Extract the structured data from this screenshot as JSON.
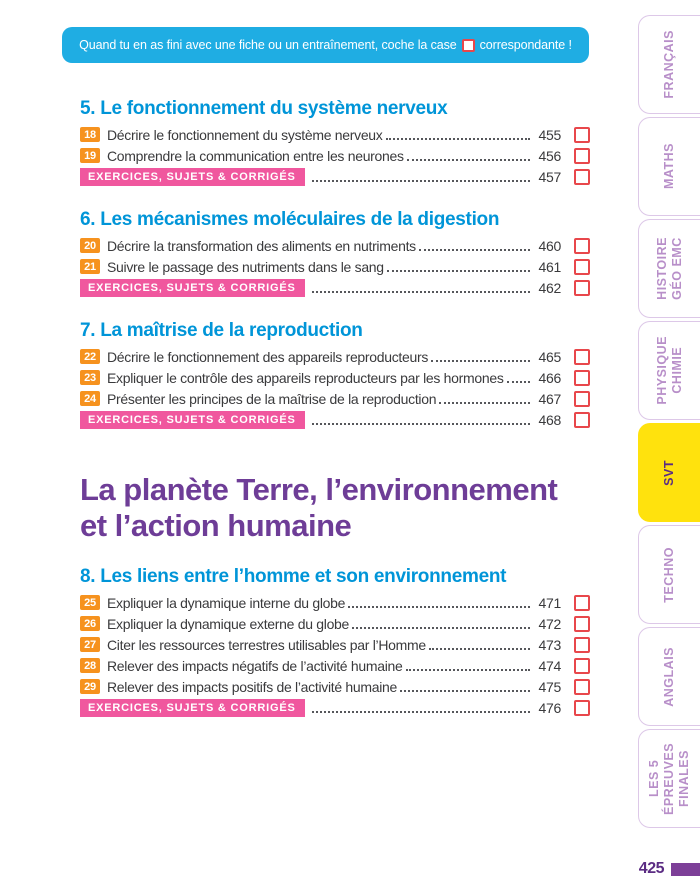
{
  "banner": {
    "text_before": "Quand tu en as fini avec une fiche ou un entraînement, coche la case",
    "text_after": "correspondante !"
  },
  "part_title": "La planète Terre, l’environnement\net l’action humaine",
  "sections": [
    {
      "title": "5. Le fonctionnement du système nerveux",
      "items": [
        {
          "type": "lesson",
          "num": "18",
          "label": "Décrire le fonctionnement du système nerveux",
          "page": "455"
        },
        {
          "type": "lesson",
          "num": "19",
          "label": "Comprendre la communication entre les neurones",
          "page": "456"
        },
        {
          "type": "exercises",
          "label": "EXERCICES, SUJETS & CORRIGÉS",
          "page": "457"
        }
      ]
    },
    {
      "title": "6. Les mécanismes moléculaires de la digestion",
      "items": [
        {
          "type": "lesson",
          "num": "20",
          "label": "Décrire la transformation des aliments en nutriments",
          "page": "460"
        },
        {
          "type": "lesson",
          "num": "21",
          "label": "Suivre le passage des nutriments dans le sang",
          "page": "461"
        },
        {
          "type": "exercises",
          "label": "EXERCICES, SUJETS & CORRIGÉS",
          "page": "462"
        }
      ]
    },
    {
      "title": "7. La maîtrise de la reproduction",
      "items": [
        {
          "type": "lesson",
          "num": "22",
          "label": "Décrire le fonctionnement des appareils reproducteurs",
          "page": "465"
        },
        {
          "type": "lesson",
          "num": "23",
          "label": "Expliquer le contrôle des appareils reproducteurs par les hormones",
          "page": "466"
        },
        {
          "type": "lesson",
          "num": "24",
          "label": "Présenter les principes de la maîtrise de la reproduction",
          "page": "467"
        },
        {
          "type": "exercises",
          "label": "EXERCICES, SUJETS & CORRIGÉS",
          "page": "468"
        }
      ]
    },
    {
      "title": "8. Les liens entre l’homme et son environnement",
      "part_break_before": true,
      "items": [
        {
          "type": "lesson",
          "num": "25",
          "label": "Expliquer la dynamique interne du globe",
          "page": "471"
        },
        {
          "type": "lesson",
          "num": "26",
          "label": "Expliquer la dynamique externe du globe",
          "page": "472"
        },
        {
          "type": "lesson",
          "num": "27",
          "label": "Citer les ressources terrestres utilisables par l’Homme",
          "page": "473"
        },
        {
          "type": "lesson",
          "num": "28",
          "label": "Relever des impacts négatifs de l’activité humaine",
          "page": "474"
        },
        {
          "type": "lesson",
          "num": "29",
          "label": "Relever des impacts positifs de l’activité humaine",
          "page": "475"
        },
        {
          "type": "exercises",
          "label": "EXERCICES, SUJETS & CORRIGÉS",
          "page": "476"
        }
      ]
    }
  ],
  "sidebar": {
    "tabs": [
      {
        "id": "francais",
        "label": "FRANÇAIS",
        "active": false
      },
      {
        "id": "maths",
        "label": "MATHS",
        "active": false
      },
      {
        "id": "histoire-geo-emc",
        "label": "HISTOIRE\nGÉO EMC",
        "active": false
      },
      {
        "id": "physique-chimie",
        "label": "PHYSIQUE\nCHIMIE",
        "active": false
      },
      {
        "id": "svt",
        "label": "SVT",
        "active": true
      },
      {
        "id": "techno",
        "label": "TECHNO",
        "active": false
      },
      {
        "id": "anglais",
        "label": "ANGLAIS",
        "active": false
      },
      {
        "id": "les-5-epreuves-finales",
        "label": "LES 5 ÉPREUVES\nFINALES",
        "active": false
      }
    ]
  },
  "footer": {
    "page_number": "425"
  },
  "colors": {
    "banner_bg": "#1fade3",
    "section_heading": "#0095d8",
    "part_title": "#6e3d97",
    "lesson_badge": "#f6921e",
    "exercises_badge": "#f0579e",
    "checkbox_border": "#e8474b",
    "active_tab_bg": "#ffe20d",
    "tab_text": "#b88fc9",
    "active_tab_text": "#5b2c83",
    "footer_accent": "#7d3f98",
    "dot_leader": "#56575b",
    "body_text": "#3a3a3c"
  }
}
